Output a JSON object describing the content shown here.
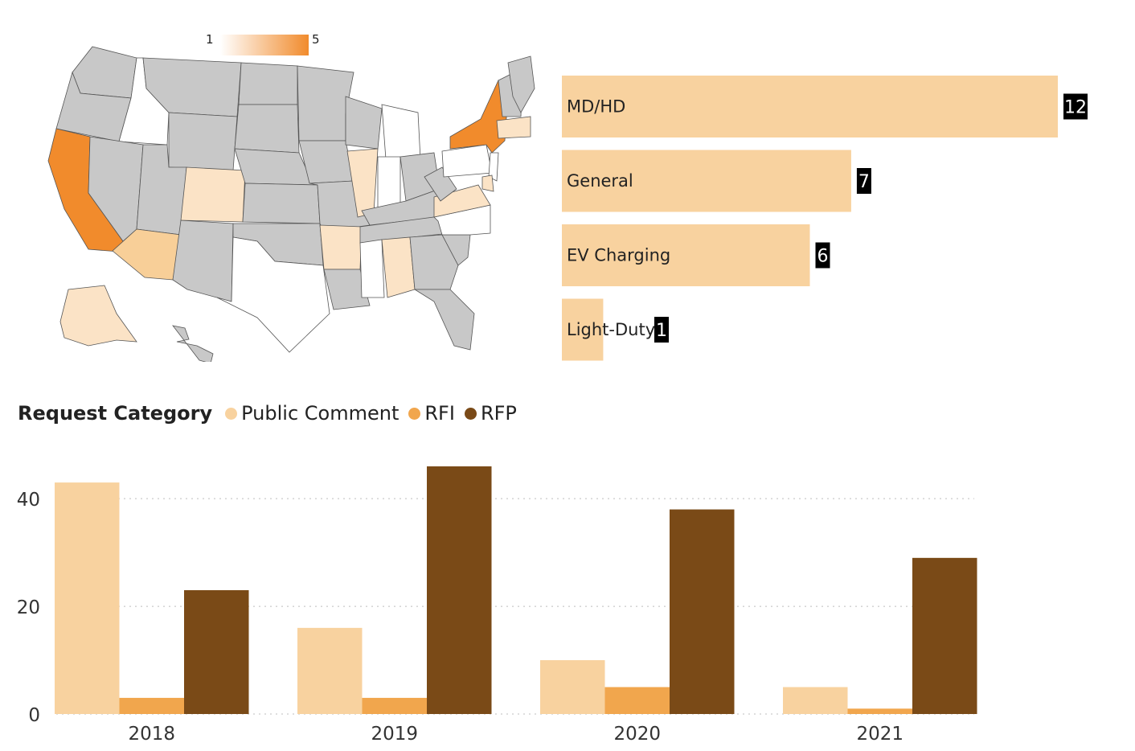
{
  "map": {
    "legend": {
      "min_label": "1",
      "max_label": "5",
      "min_color": "#ffffff",
      "max_color": "#f18b2c"
    },
    "colors": {
      "no_data": "#c8c8c8",
      "level_1": "#fbe3c6",
      "level_2": "#f8cf98",
      "level_4": "#f18b2c",
      "zero": "#ffffff",
      "border": "#555555"
    }
  },
  "hbar": {
    "type": "bar",
    "orientation": "horizontal",
    "bar_color": "#f8d29f",
    "categories": [
      "MD/HD",
      "General",
      "EV Charging",
      "Light-Duty"
    ],
    "values": [
      12,
      7,
      6,
      1
    ],
    "xlim": [
      0,
      12
    ]
  },
  "chart_data": {
    "type": "bar",
    "legend_title": "Request Category",
    "legend_placement": "top-left",
    "categories": [
      "2018",
      "2019",
      "2020",
      "2021"
    ],
    "series": [
      {
        "name": "Public Comment",
        "values": [
          43,
          16,
          10,
          5
        ],
        "color": "#f8d29f"
      },
      {
        "name": "RFI",
        "values": [
          3,
          3,
          5,
          1
        ],
        "color": "#f1a64d"
      },
      {
        "name": "RFP",
        "values": [
          23,
          46,
          38,
          29
        ],
        "color": "#7a4a17"
      }
    ],
    "yticks": [
      "0",
      "20",
      "40"
    ],
    "ylim": [
      0,
      46
    ],
    "grid": true
  }
}
